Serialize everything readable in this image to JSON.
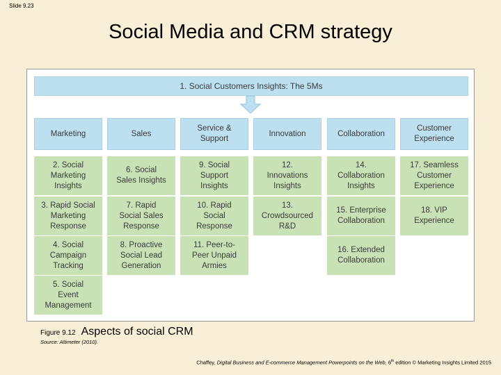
{
  "slide_number": "Slide 9.23",
  "title": "Social Media and CRM strategy",
  "diagram": {
    "banner": "1. Social Customers Insights: The 5Ms",
    "columns": [
      {
        "header": "Marketing",
        "cells": [
          "2. Social\nMarketing\nInsights",
          "3. Rapid Social\nMarketing\nResponse",
          "4. Social\nCampaign\nTracking",
          "5. Social\nEvent\nManagement"
        ]
      },
      {
        "header": "Sales",
        "cells": [
          "6. Social\nSales Insights",
          "7. Rapid\nSocial Sales\nResponse",
          "8. Proactive\nSocial Lead\nGeneration"
        ]
      },
      {
        "header": "Service &\nSupport",
        "cells": [
          "9. Social\nSupport\nInsights",
          "10. Rapid\nSocial\nResponse",
          "11. Peer-to-\nPeer Unpaid\nArmies"
        ]
      },
      {
        "header": "Innovation",
        "cells": [
          "12.\nInnovations\nInsights",
          "13.\nCrowdsourced\nR&D"
        ]
      },
      {
        "header": "Collaboration",
        "cells": [
          "14.\nCollaboration\nInsights",
          "15. Enterprise\nCollaboration",
          "16. Extended\nCollaboration"
        ]
      },
      {
        "header": "Customer\nExperience",
        "cells": [
          "17. Seamless\nCustomer\nExperience",
          "18. VIP\nExperience"
        ]
      }
    ]
  },
  "caption": {
    "figure_number": "Figure 9.12",
    "text": "Aspects of social CRM",
    "source": "Source: Altimeter (2010)."
  },
  "footer": {
    "author": "Chaffey, ",
    "book": "Digital Business and E-commerce Management Powerpoints on the Web,",
    "edition_num": " 6",
    "edition_sup": "th",
    "rest": " edition © Marketing Insights Limited 2015"
  },
  "colors": {
    "header_blue": "#bde0f1",
    "cell_green": "#c8e2b5",
    "background": "#f8efd6"
  }
}
